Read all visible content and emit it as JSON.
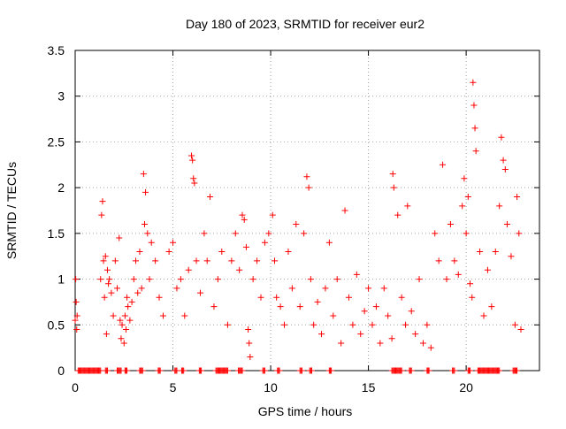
{
  "chart_data": {
    "type": "scatter",
    "title": "Day 180 of 2023, SRMTID for receiver eur2",
    "xlabel": "GPS time / hours",
    "ylabel": "SRMTID / TECUs",
    "xlim": [
      0,
      23.75
    ],
    "ylim": [
      0,
      3.5
    ],
    "x_ticks": [
      0,
      5,
      10,
      15,
      20
    ],
    "x_tick_labels": [
      "0",
      "5",
      "10",
      "15",
      "20"
    ],
    "y_ticks": [
      0,
      0.5,
      1,
      1.5,
      2,
      2.5,
      3,
      3.5
    ],
    "y_tick_labels": [
      "0",
      "0.5",
      "1",
      "1.5",
      "2",
      "2.5",
      "3",
      "3.5"
    ],
    "grid": true,
    "marker": "+",
    "color": "#ff0000",
    "series": [
      {
        "name": "SRMTID",
        "x": [
          0.0,
          0.03,
          0.05,
          0.08,
          0.1,
          1.3,
          1.35,
          1.4,
          1.45,
          1.5,
          1.55,
          1.6,
          1.65,
          1.7,
          1.75,
          1.85,
          1.95,
          2.05,
          2.15,
          2.25,
          2.3,
          2.35,
          2.4,
          2.5,
          2.55,
          2.6,
          2.65,
          2.7,
          2.8,
          2.9,
          3.0,
          3.1,
          3.2,
          3.3,
          3.4,
          3.5,
          3.55,
          3.6,
          3.7,
          3.8,
          3.9,
          4.1,
          4.3,
          4.5,
          4.8,
          5.0,
          5.2,
          5.4,
          5.6,
          5.8,
          5.95,
          6.0,
          6.05,
          6.1,
          6.2,
          6.4,
          6.6,
          6.75,
          6.9,
          7.1,
          7.3,
          7.5,
          7.8,
          8.0,
          8.2,
          8.4,
          8.55,
          8.65,
          8.75,
          8.85,
          8.9,
          8.95,
          9.1,
          9.3,
          9.5,
          9.7,
          9.9,
          10.1,
          10.2,
          10.3,
          10.5,
          10.7,
          10.9,
          11.1,
          11.3,
          11.5,
          11.7,
          11.85,
          11.95,
          12.05,
          12.2,
          12.4,
          12.6,
          12.8,
          13.0,
          13.2,
          13.4,
          13.6,
          13.8,
          14.0,
          14.2,
          14.4,
          14.6,
          14.8,
          15.0,
          15.2,
          15.4,
          15.6,
          15.8,
          16.0,
          16.2,
          16.25,
          16.3,
          16.5,
          16.7,
          16.9,
          17.0,
          17.2,
          17.4,
          17.6,
          17.8,
          18.0,
          18.2,
          18.4,
          18.6,
          18.8,
          19.0,
          19.2,
          19.4,
          19.6,
          19.8,
          19.9,
          20.0,
          20.1,
          20.2,
          20.3,
          20.35,
          20.4,
          20.45,
          20.5,
          20.7,
          20.9,
          21.1,
          21.3,
          21.5,
          21.7,
          21.8,
          21.9,
          22.0,
          22.1,
          22.3,
          22.5,
          22.6,
          22.7,
          22.8
        ],
        "y": [
          0.55,
          1.0,
          0.75,
          0.45,
          0.6,
          1.0,
          1.7,
          1.85,
          1.2,
          0.8,
          1.25,
          0.4,
          1.1,
          0.95,
          1.0,
          0.85,
          0.6,
          1.2,
          0.9,
          1.45,
          0.55,
          0.35,
          0.5,
          0.3,
          0.6,
          0.45,
          0.8,
          0.7,
          0.55,
          0.75,
          1.0,
          1.2,
          0.85,
          1.3,
          0.9,
          2.15,
          1.6,
          1.95,
          1.5,
          1.0,
          1.4,
          1.2,
          0.8,
          0.6,
          1.3,
          1.4,
          0.9,
          1.0,
          0.6,
          1.1,
          2.35,
          2.3,
          2.1,
          2.05,
          1.2,
          0.85,
          1.5,
          1.2,
          1.9,
          0.7,
          1.0,
          1.3,
          0.5,
          1.2,
          1.5,
          1.1,
          1.7,
          1.65,
          1.35,
          0.45,
          0.3,
          0.15,
          1.0,
          1.2,
          0.8,
          1.4,
          1.5,
          1.7,
          1.2,
          0.8,
          0.7,
          0.5,
          1.3,
          0.9,
          1.6,
          0.7,
          1.5,
          2.12,
          2.0,
          1.0,
          0.5,
          0.75,
          0.4,
          0.9,
          1.4,
          0.6,
          1.0,
          0.3,
          1.75,
          0.8,
          0.5,
          1.05,
          0.4,
          0.65,
          0.9,
          0.5,
          0.7,
          0.3,
          0.9,
          0.6,
          0.35,
          2.15,
          2.0,
          1.7,
          0.8,
          0.5,
          1.8,
          0.65,
          0.4,
          1.0,
          0.3,
          0.5,
          0.25,
          1.5,
          1.2,
          2.25,
          1.0,
          1.6,
          1.2,
          1.05,
          1.8,
          2.1,
          1.5,
          1.9,
          0.95,
          0.8,
          3.15,
          2.9,
          2.65,
          2.4,
          1.3,
          0.6,
          1.1,
          0.7,
          1.3,
          1.8,
          2.55,
          2.3,
          2.2,
          1.6,
          1.25,
          0.5,
          1.9,
          1.5,
          0.45
        ]
      }
    ],
    "zero_band_ranges": [
      [
        0.15,
        1.3
      ],
      [
        1.55,
        1.65
      ],
      [
        2.15,
        2.35
      ],
      [
        2.55,
        2.65
      ],
      [
        3.3,
        3.45
      ],
      [
        4.25,
        4.35
      ],
      [
        5.1,
        5.2
      ],
      [
        5.45,
        5.55
      ],
      [
        6.35,
        6.45
      ],
      [
        7.2,
        7.8
      ],
      [
        8.35,
        8.55
      ],
      [
        9.6,
        9.7
      ],
      [
        10.35,
        10.45
      ],
      [
        11.5,
        11.6
      ],
      [
        12.0,
        12.1
      ],
      [
        13.0,
        13.1
      ],
      [
        16.2,
        16.7
      ],
      [
        17.1,
        17.2
      ],
      [
        18.0,
        18.1
      ],
      [
        19.3,
        19.4
      ],
      [
        20.1,
        20.2
      ],
      [
        20.6,
        21.7
      ],
      [
        22.4,
        22.6
      ]
    ]
  }
}
